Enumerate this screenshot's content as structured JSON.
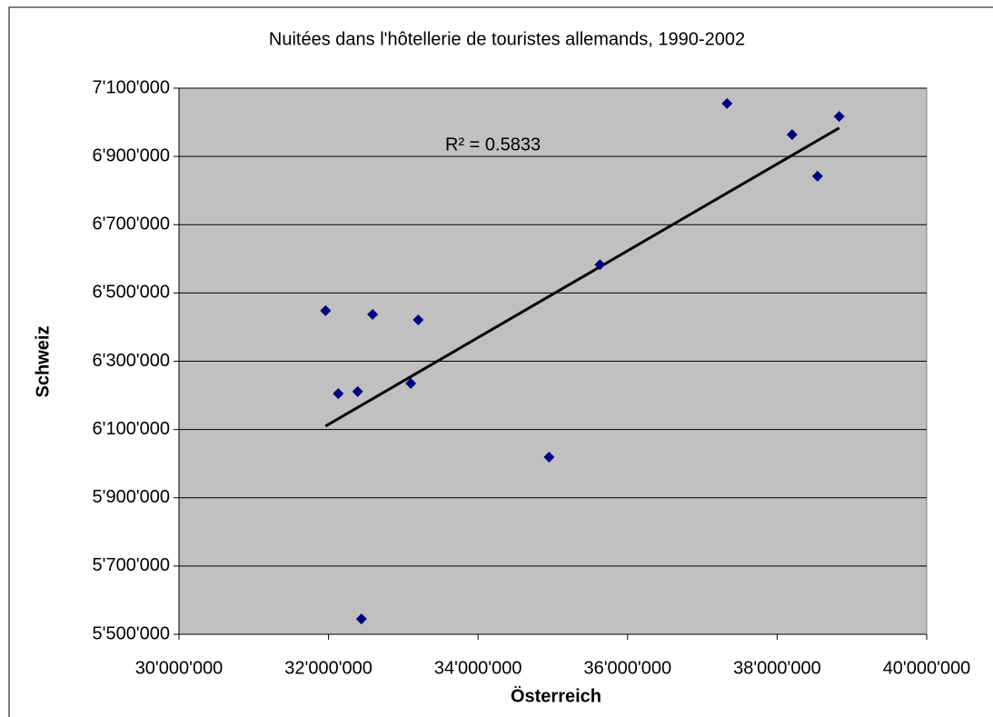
{
  "chart_data": {
    "type": "scatter",
    "title": "Nuitées dans l'hôtellerie de touristes allemands, 1990-2002",
    "x_label": "Österreich",
    "y_label": "Schweiz",
    "annotation": "R² = 0.5833",
    "series": [
      {
        "color": "#000080",
        "x": [
          31960000,
          32130000,
          32390000,
          32590000,
          32440000,
          33100000,
          33200000,
          34950000,
          35630000,
          37330000,
          38200000,
          38540000,
          38830000
        ],
        "values": [
          6448000,
          6205000,
          6211000,
          6437000,
          5545000,
          6235000,
          6421000,
          6019000,
          6583000,
          7055000,
          6964000,
          6842000,
          7017000
        ]
      }
    ],
    "trendline": true,
    "xlim": [
      30000000,
      40000000
    ],
    "xticks": [
      {
        "value": 30000000,
        "label": "30'000'000"
      },
      {
        "value": 32000000,
        "label": "32'000'000"
      },
      {
        "value": 34000000,
        "label": "34'000'000"
      },
      {
        "value": 36000000,
        "label": "36'000'000"
      },
      {
        "value": 38000000,
        "label": "38'000'000"
      },
      {
        "value": 40000000,
        "label": "40'000'000"
      }
    ],
    "ylim": [
      5500000,
      7100000
    ],
    "yticks": [
      {
        "value": 5500000,
        "label": "5'500'000"
      },
      {
        "value": 5700000,
        "label": "5'700'000"
      },
      {
        "value": 5900000,
        "label": "5'900'000"
      },
      {
        "value": 6100000,
        "label": "6'100'000"
      },
      {
        "value": 6300000,
        "label": "6'300'000"
      },
      {
        "value": 6500000,
        "label": "6'500'000"
      },
      {
        "value": 6700000,
        "label": "6'700'000"
      },
      {
        "value": 6900000,
        "label": "6'900'000"
      },
      {
        "value": 7100000,
        "label": "7'100'000"
      }
    ],
    "grid": true
  }
}
